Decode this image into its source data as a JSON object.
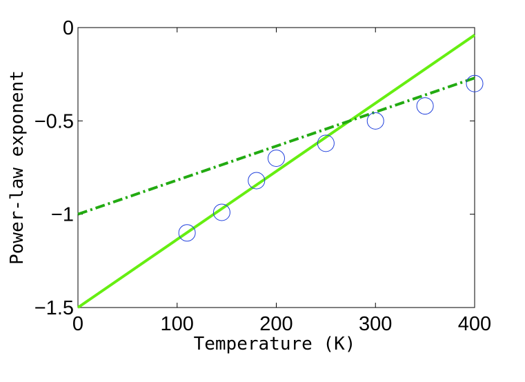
{
  "chart_data": {
    "type": "scatter",
    "xlabel": "Temperature (K)",
    "ylabel": "Power-law exponent",
    "xlim": [
      0,
      400
    ],
    "ylim": [
      -1.5,
      0
    ],
    "x_ticks": [
      "0",
      "100",
      "200",
      "300",
      "400"
    ],
    "y_ticks": [
      "−1.5",
      "−1",
      "−0.5",
      "0"
    ],
    "grid": false,
    "series": [
      {
        "type": "scatter",
        "marker": "open-circle",
        "color": "#1f3fdc",
        "x": [
          110,
          145,
          180,
          200,
          250,
          300,
          350,
          400
        ],
        "y": [
          -1.1,
          -0.99,
          -0.82,
          -0.7,
          -0.62,
          -0.5,
          -0.42,
          -0.3
        ]
      },
      {
        "type": "line",
        "style": "solid",
        "color": "#66ee11",
        "x": [
          0,
          400
        ],
        "y": [
          -1.5,
          -0.04
        ]
      },
      {
        "type": "line",
        "style": "dash-dot",
        "color": "#22aa11",
        "x": [
          0,
          400
        ],
        "y": [
          -1.0,
          -0.27
        ]
      }
    ]
  }
}
